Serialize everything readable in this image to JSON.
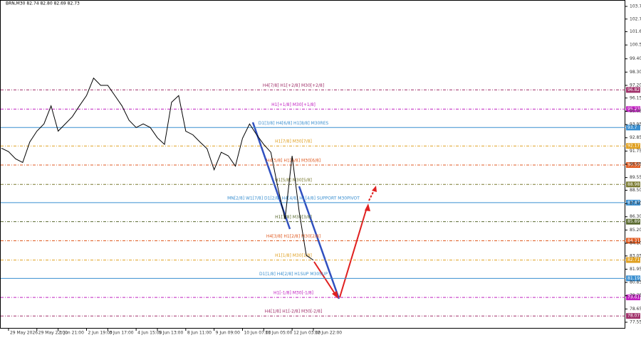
{
  "chart_data": {
    "type": "line",
    "title": "BRN,M30 82.74 82.80 82.69 82.73",
    "categories": [
      null,
      "29 May 2026",
      null,
      null,
      null,
      "29 May 22:00",
      null,
      null,
      "1 Jun 21:00",
      null,
      null,
      null,
      "2 Jun 19:00",
      null,
      null,
      "3 Jun 17:00",
      null,
      null,
      null,
      "4 Jun 15:00",
      null,
      null,
      "5 Jun 13:00",
      null,
      null,
      null,
      "8 Jun 11:00",
      null,
      null,
      null,
      "9 Jun 09:00",
      null,
      null,
      null,
      "10 Jun 07:00",
      null,
      null,
      "11 Jun 05:00",
      null,
      null,
      null,
      "12 Jun 03:00",
      null,
      null,
      "12 Jun 22:00"
    ],
    "series": [
      {
        "name": "BRN,M30",
        "color": "#000000",
        "values": [
          91.99,
          91.7,
          91.1,
          90.8,
          92.5,
          93.4,
          94.0,
          95.5,
          93.4,
          94.0,
          94.6,
          95.5,
          96.35,
          97.8,
          97.2,
          97.2,
          96.35,
          95.5,
          94.3,
          93.7,
          94.0,
          93.7,
          92.85,
          92.3,
          95.8,
          96.35,
          93.4,
          93.1,
          92.5,
          91.95,
          90.2,
          91.65,
          91.35,
          90.5,
          92.8,
          94.0,
          93.1,
          92.3,
          91.65,
          88.7,
          86.1,
          91.35,
          86.7,
          83.1,
          82.7
        ]
      }
    ],
    "levels": [
      {
        "label": "H4[7/8] H1[+2/8] M30[+2/8]",
        "value": 96.82,
        "color": "#a0306a",
        "dash": true
      },
      {
        "label": "H1[+1/8] M30[+1/8]",
        "value": 95.23,
        "color": "#c020c0",
        "dash": true
      },
      {
        "label": "D1[3/8] H4[6/8] H1[8/8] M30RES",
        "value": 93.7,
        "color": "#3a8fd0",
        "dash": false
      },
      {
        "label": "H1[7/8] M30[7/8]",
        "value": 92.17,
        "color": "#e0a020",
        "dash": true
      },
      {
        "label": "H4[5/8] H1[6/8] M30[6/8]",
        "value": 90.59,
        "color": "#e05a20",
        "dash": true
      },
      {
        "label": "H1[5/8] M30[5/8]",
        "value": 88.98,
        "color": "#7a7a30",
        "dash": true
      },
      {
        "label": "MN[2/8] W1[7/8] D1[2/8] H4[4/8] H1[4/8] SUPPORT M30PIVOT",
        "value": 87.47,
        "color": "#3a8fd0",
        "dash": false
      },
      {
        "label": "H1[3/8] M30[3/8]",
        "value": 85.89,
        "color": "#5a6a30",
        "dash": true
      },
      {
        "label": "H4[3/8] H1[2/8] M30[2/8]",
        "value": 84.31,
        "color": "#e05a20",
        "dash": true
      },
      {
        "label": "H1[1/8] M30[1/8]",
        "value": 82.71,
        "color": "#e0a020",
        "dash": true
      },
      {
        "label": "D1[1/8] H4[2/8] H1SUP M30SUP",
        "value": 81.19,
        "color": "#3a8fd0",
        "dash": false
      },
      {
        "label": "H1[-1/8] M30[-1/8]",
        "value": 79.61,
        "color": "#c020c0",
        "dash": true
      },
      {
        "label": "H4[1/8] H1[-2/8] M30[-2/8]",
        "value": 78.07,
        "color": "#a0306a",
        "dash": true
      }
    ],
    "ylim": [
      77.02,
      104.28
    ],
    "yticks": [
      {
        "value": 103.75,
        "label": "103.75"
      },
      {
        "value": 102.7,
        "label": "102.70"
      },
      {
        "value": 101.65,
        "label": "101.65"
      },
      {
        "value": 100.55,
        "label": "100.55"
      },
      {
        "value": 99.4,
        "label": "99.40"
      },
      {
        "value": 98.3,
        "label": "98.30"
      },
      {
        "value": 97.2,
        "label": "97.20"
      },
      {
        "value": 96.15,
        "label": "96.15"
      },
      {
        "value": 95.05,
        "label": "95.05"
      },
      {
        "value": 93.95,
        "label": "93.95"
      },
      {
        "value": 92.85,
        "label": "92.85"
      },
      {
        "value": 91.75,
        "label": "91.75"
      },
      {
        "value": 90.65,
        "label": "90.65"
      },
      {
        "value": 89.55,
        "label": "89.55"
      },
      {
        "value": 88.5,
        "label": "88.50"
      },
      {
        "value": 87.4,
        "label": "87.40"
      },
      {
        "value": 86.3,
        "label": "86.30"
      },
      {
        "value": 85.2,
        "label": "85.20"
      },
      {
        "value": 84.1,
        "label": "84.10"
      },
      {
        "value": 83.05,
        "label": "83.05"
      },
      {
        "value": 81.95,
        "label": "81.95"
      },
      {
        "value": 80.85,
        "label": "80.85"
      },
      {
        "value": 79.75,
        "label": "79.75"
      },
      {
        "value": 78.65,
        "label": "78.65"
      },
      {
        "value": 77.55,
        "label": "77.55"
      }
    ]
  }
}
